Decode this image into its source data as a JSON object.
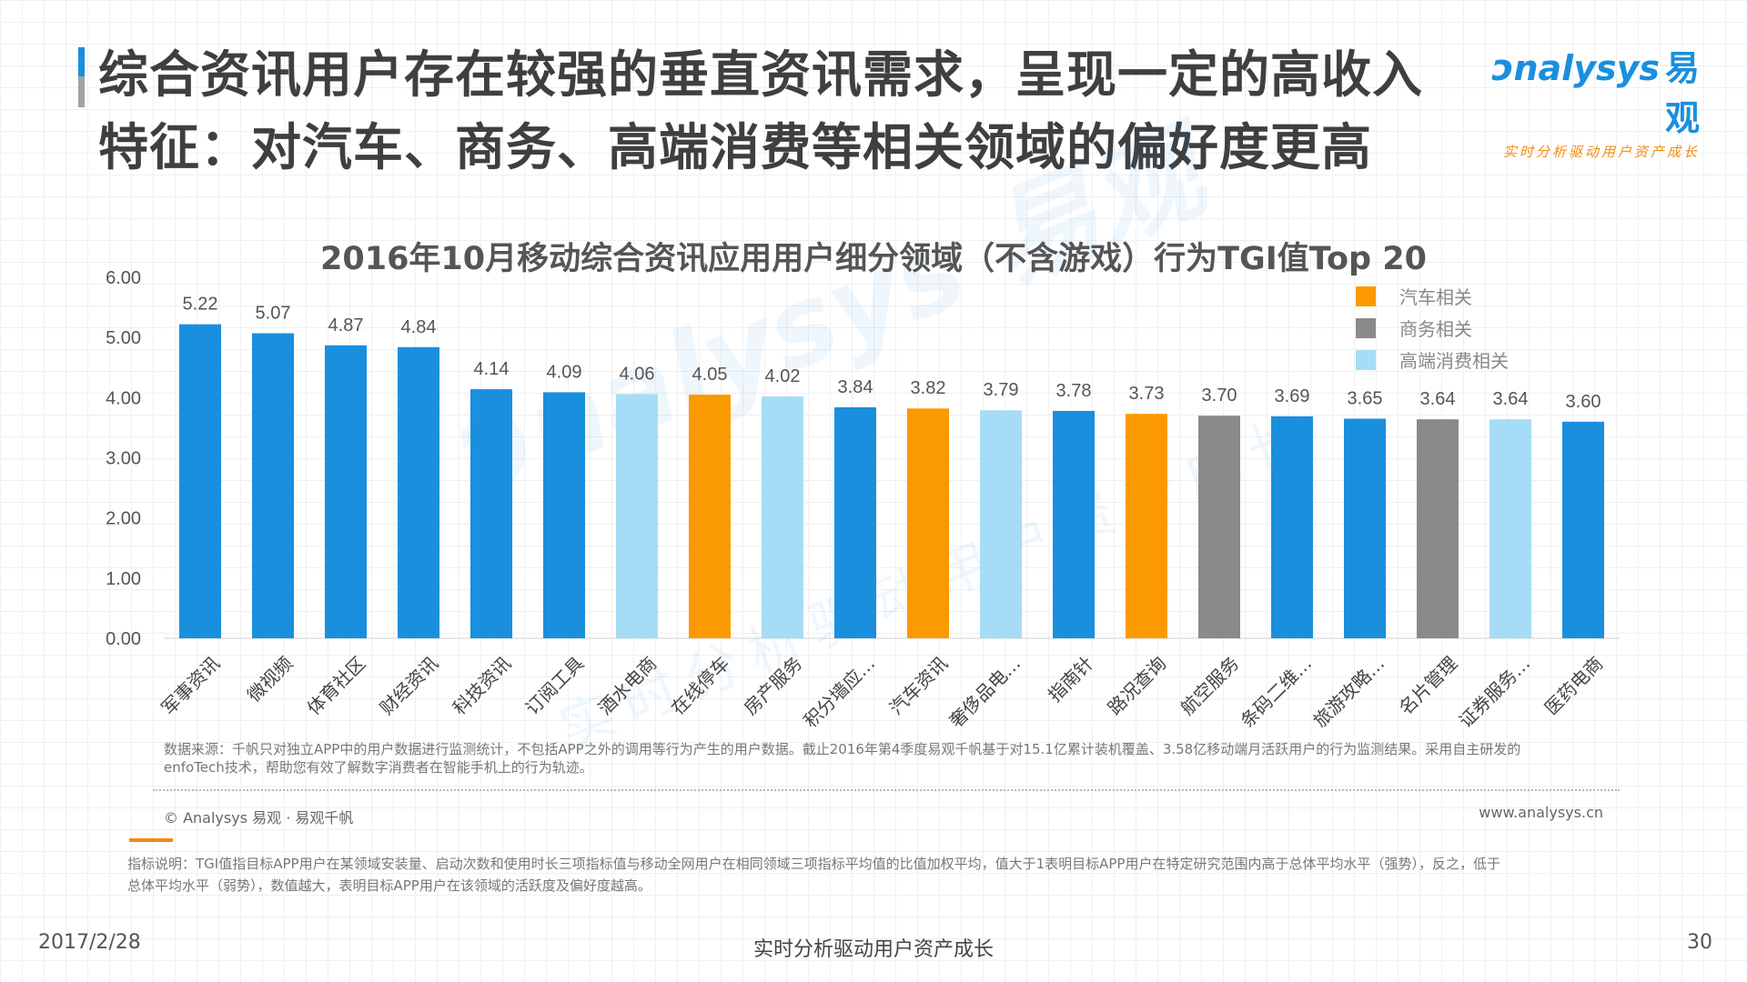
{
  "slide": {
    "title": "综合资讯用户存在较强的垂直资讯需求，呈现一定的高收入特征：对汽车、商务、高端消费等相关领域的偏好度更高"
  },
  "logo": {
    "brand": "nalysys",
    "brand_cn": "易观",
    "slogan": "实时分析驱动用户资产成长"
  },
  "watermark": {
    "text": "nalysys 易观",
    "sub": "实时分析驱动用户资产成长"
  },
  "colors": {
    "dark_blue": "#1a8fdd",
    "orange": "#fb9a00",
    "gray": "#8a8a8a",
    "light_blue": "#a6dcf6",
    "accent_orange": "#f28b0c"
  },
  "chart_data": {
    "type": "bar",
    "title": "2016年10月移动综合资讯应用用户细分领域（不含游戏）行为TGI值Top 20",
    "xlabel": "",
    "ylabel": "",
    "ylim": [
      0,
      6
    ],
    "yticks": [
      "0.00",
      "1.00",
      "2.00",
      "3.00",
      "4.00",
      "5.00",
      "6.00"
    ],
    "grid": false,
    "legend_position": "top-right",
    "categories": [
      "军事资讯",
      "微视频",
      "体育社区",
      "财经资讯",
      "科技资讯",
      "订阅工具",
      "酒水电商",
      "在线停车",
      "房产服务",
      "积分墙应…",
      "汽车资讯",
      "奢侈品电…",
      "指南针",
      "路况查询",
      "航空服务",
      "条码二维…",
      "旅游攻略…",
      "名片管理",
      "证券服务…",
      "医药电商"
    ],
    "values": [
      5.22,
      5.07,
      4.87,
      4.84,
      4.14,
      4.09,
      4.06,
      4.05,
      4.02,
      3.84,
      3.82,
      3.79,
      3.78,
      3.73,
      3.7,
      3.69,
      3.65,
      3.64,
      3.64,
      3.6
    ],
    "value_labels": [
      "5.22",
      "5.07",
      "4.87",
      "4.84",
      "4.14",
      "4.09",
      "4.06",
      "4.05",
      "4.02",
      "3.84",
      "3.82",
      "3.79",
      "3.78",
      "3.73",
      "3.70",
      "3.69",
      "3.65",
      "3.64",
      "3.64",
      "3.60"
    ],
    "groups": [
      "other",
      "other",
      "other",
      "other",
      "other",
      "other",
      "luxury",
      "auto",
      "luxury",
      "other",
      "auto",
      "luxury",
      "other",
      "auto",
      "business",
      "other",
      "other",
      "business",
      "luxury",
      "other"
    ],
    "legend": [
      {
        "key": "auto",
        "label": "汽车相关",
        "color": "#fb9a00"
      },
      {
        "key": "business",
        "label": "商务相关",
        "color": "#8a8a8a"
      },
      {
        "key": "luxury",
        "label": "高端消费相关",
        "color": "#a6dcf6"
      }
    ],
    "group_colors": {
      "other": "#1a8fdd",
      "auto": "#fb9a00",
      "business": "#8a8a8a",
      "luxury": "#a6dcf6"
    }
  },
  "notes": {
    "source_line1": "数据来源：千帆只对独立APP中的用户数据进行监测统计，不包括APP之外的调用等行为产生的用户数据。截止2016年第4季度易观千帆基于对15.1亿累计装机覆盖、3.58亿移动端月活跃用户的行为监测结果。采用自主研发的",
    "source_line2": "enfoTech技术，帮助您有效了解数字消费者在智能手机上的行为轨迹。",
    "copyright": "© Analysys 易观 · 易观千帆",
    "website": "www.analysys.cn",
    "tgi_line1": "指标说明：TGI值指目标APP用户在某领域安装量、启动次数和使用时长三项指标值与移动全网用户在相同领域三项指标平均值的比值加权平均，值大于1表明目标APP用户在特定研究范围内高于总体平均水平（强势），反之，低于",
    "tgi_line2": "总体平均水平（弱势），数值越大，表明目标APP用户在该领域的活跃度及偏好度越高。"
  },
  "footer": {
    "date": "2017/2/28",
    "slogan": "实时分析驱动用户资产成长",
    "page": "30"
  }
}
